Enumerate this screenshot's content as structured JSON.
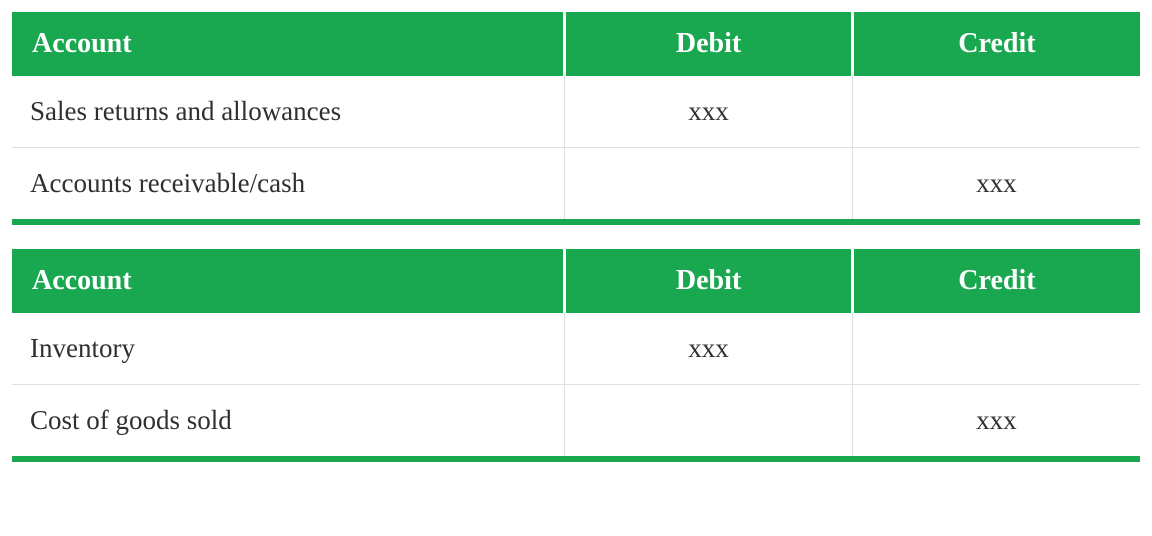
{
  "tables": [
    {
      "columns": [
        "Account",
        "Debit",
        "Credit"
      ],
      "rows": [
        [
          "Sales returns and allowances",
          "xxx",
          ""
        ],
        [
          "Accounts receivable/cash",
          "",
          "xxx"
        ]
      ]
    },
    {
      "columns": [
        "Account",
        "Debit",
        "Credit"
      ],
      "rows": [
        [
          "Inventory",
          "xxx",
          ""
        ],
        [
          "Cost of goods sold",
          "",
          "xxx"
        ]
      ]
    }
  ],
  "styling": {
    "header_bg_color": "#19a850",
    "header_text_color": "#ffffff",
    "header_font_size": 28,
    "header_font_weight": "bold",
    "cell_font_size": 27,
    "cell_text_color": "#303030",
    "cell_border_color": "#e0e0e0",
    "bottom_border_color": "#19a850",
    "bottom_border_height": 6,
    "background_color": "#ffffff",
    "font_family": "Georgia, serif",
    "column_widths": [
      "49%",
      "25.5%",
      "25.5%"
    ],
    "column_alignments": [
      "left",
      "center",
      "center"
    ],
    "table_spacing": 24
  }
}
